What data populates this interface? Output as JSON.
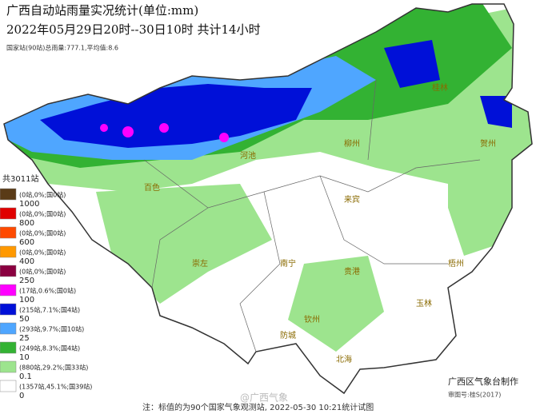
{
  "header": {
    "title": "广西自动站雨量实况统计(单位:mm)",
    "period": "2022年05月29日20时--30日10时  共计14小时",
    "summary": "国家站(90站)总雨量:777.1,平均值:8.6"
  },
  "legend": {
    "total": "共3011站",
    "items": [
      {
        "color": "#5a3b17",
        "count": "(0站,0%;国0站)",
        "threshold": "1000"
      },
      {
        "color": "#e00000",
        "count": "(0站,0%;国0站)",
        "threshold": "800"
      },
      {
        "color": "#ff4a00",
        "count": "(0站,0%;国0站)",
        "threshold": "600"
      },
      {
        "color": "#ff9900",
        "count": "(0站,0%;国0站)",
        "threshold": "400"
      },
      {
        "color": "#8a0040",
        "count": "(0站,0%;国0站)",
        "threshold": "250"
      },
      {
        "color": "#ff00ff",
        "count": "(17站,0.6%;国0站)",
        "threshold": "100"
      },
      {
        "color": "#0010d8",
        "count": "(215站,7.1%;国4站)",
        "threshold": "50"
      },
      {
        "color": "#4fa6ff",
        "count": "(293站,9.7%;国10站)",
        "threshold": "25"
      },
      {
        "color": "#33b233",
        "count": "(249站,8.3%;国4站)",
        "threshold": "10"
      },
      {
        "color": "#9de48e",
        "count": "(880站,29.2%;国33站)",
        "threshold": "0.1"
      },
      {
        "color": "#ffffff",
        "count": "(1357站,45.1%;国39站)",
        "threshold": "0"
      }
    ]
  },
  "cities": [
    "桂林",
    "柳州",
    "河池",
    "百色",
    "南宁",
    "来宾",
    "贵港",
    "梧州",
    "玉林",
    "钦州",
    "北海",
    "防城",
    "崇左",
    "贺州"
  ],
  "footer": {
    "note": "注：标值的为90个国家气象观测站, 2022-05-30 10:21统计试图",
    "producer": "广西区气象台制作",
    "approval": "审图号:桂S(2017)",
    "watermark": "@广西气象"
  }
}
